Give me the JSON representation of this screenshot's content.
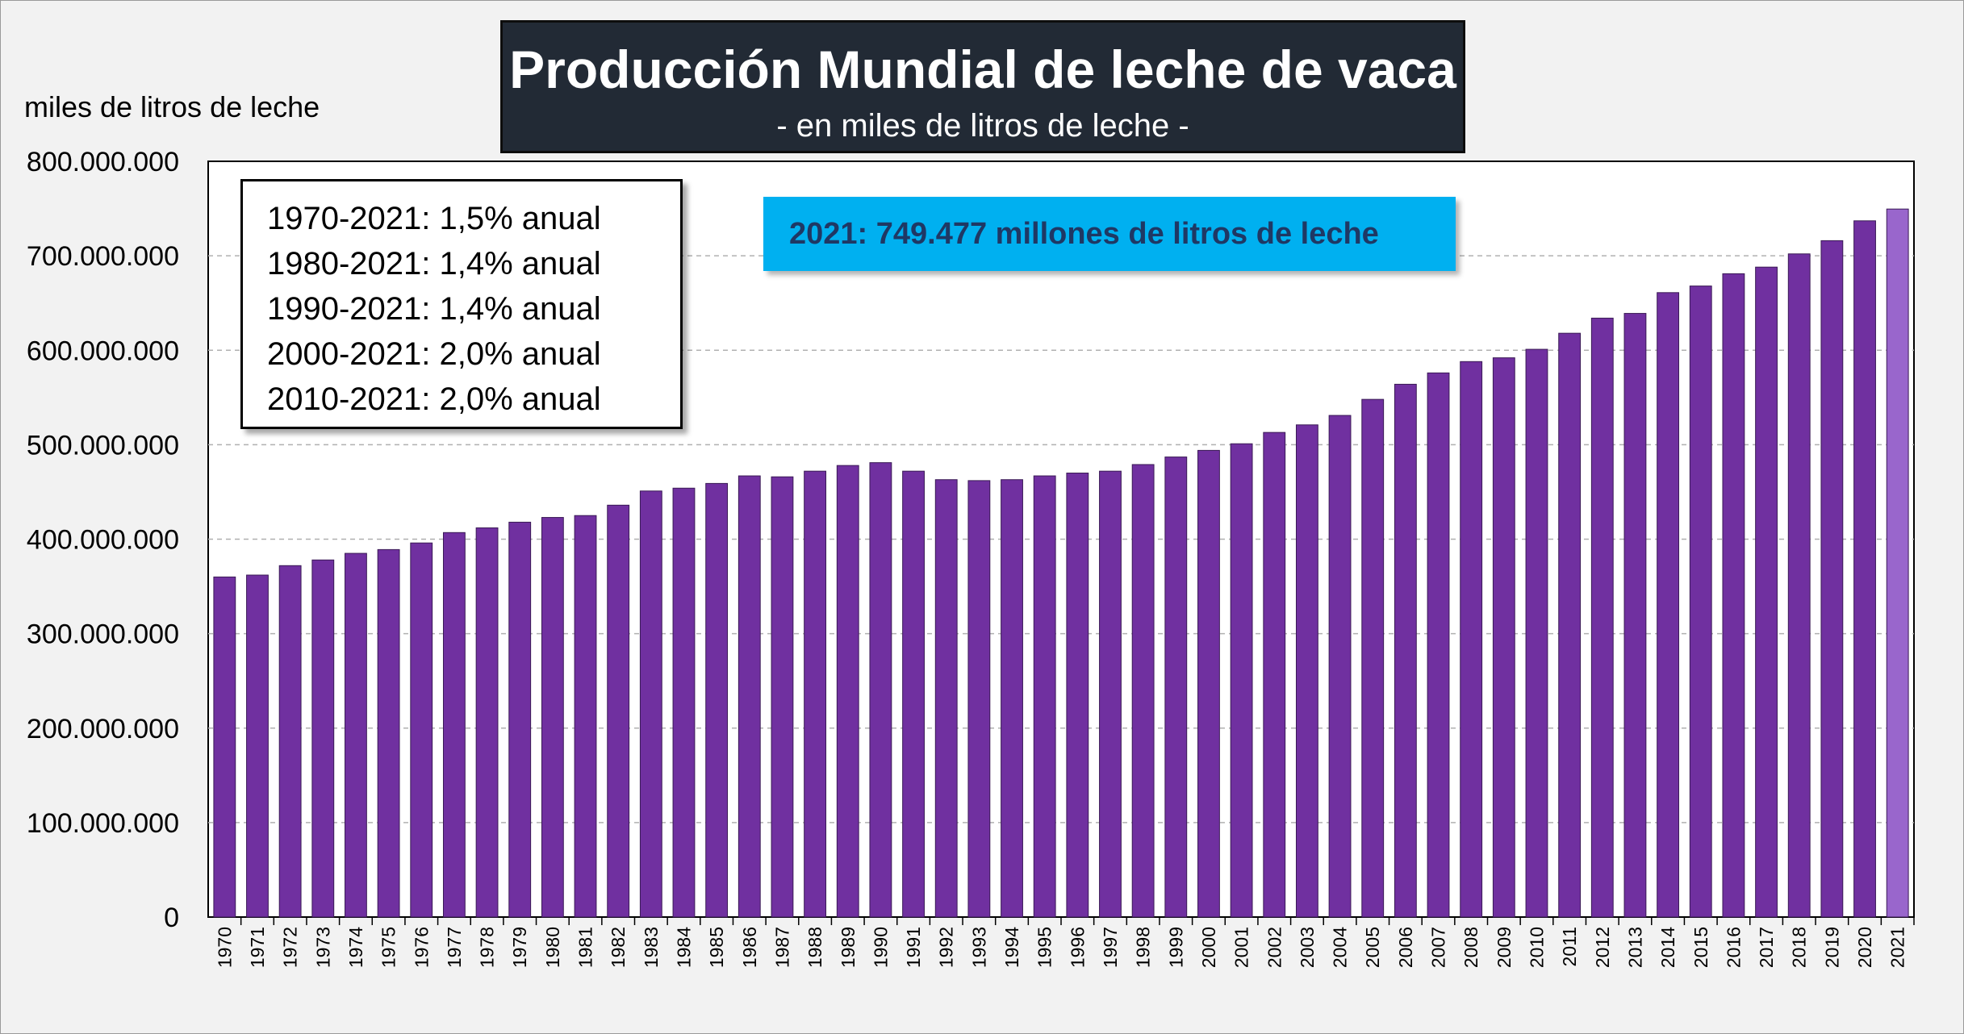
{
  "title": "Producción Mundial de leche de vaca",
  "subtitle": "- en miles de litros de leche -",
  "y_axis_title": "miles de litros de leche",
  "growth_rates": [
    "1970-2021: 1,5% anual",
    "1980-2021: 1,4% anual",
    "1990-2021: 1,4% anual",
    "2000-2021: 2,0% anual",
    "2010-2021: 2,0% anual"
  ],
  "highlight_label": "2021: 749.477 millones de litros de leche",
  "colors": {
    "bar": "#7030a0",
    "bar_last": "#9966cc",
    "title_bg": "#222a35",
    "highlight_bg": "#00b0f0",
    "highlight_text": "#1f3864"
  },
  "chart_data": {
    "type": "bar",
    "ylim": [
      0,
      800000000
    ],
    "grid": true,
    "yticks": [
      "0",
      "100.000.000",
      "200.000.000",
      "300.000.000",
      "400.000.000",
      "500.000.000",
      "600.000.000",
      "700.000.000",
      "800.000.000"
    ],
    "categories": [
      "1970",
      "1971",
      "1972",
      "1973",
      "1974",
      "1975",
      "1976",
      "1977",
      "1978",
      "1979",
      "1980",
      "1981",
      "1982",
      "1983",
      "1984",
      "1985",
      "1986",
      "1987",
      "1988",
      "1989",
      "1990",
      "1991",
      "1992",
      "1993",
      "1994",
      "1995",
      "1996",
      "1997",
      "1998",
      "1999",
      "2000",
      "2001",
      "2002",
      "2003",
      "2004",
      "2005",
      "2006",
      "2007",
      "2008",
      "2009",
      "2010",
      "2011",
      "2012",
      "2013",
      "2014",
      "2015",
      "2016",
      "2017",
      "2018",
      "2019",
      "2020",
      "2021"
    ],
    "values": [
      360000000,
      362000000,
      372000000,
      378000000,
      385000000,
      389000000,
      396000000,
      407000000,
      412000000,
      418000000,
      423000000,
      425000000,
      436000000,
      451000000,
      454000000,
      459000000,
      467000000,
      466000000,
      472000000,
      478000000,
      481000000,
      472000000,
      463000000,
      462000000,
      463000000,
      467000000,
      470000000,
      472000000,
      479000000,
      487000000,
      494000000,
      501000000,
      513000000,
      521000000,
      531000000,
      548000000,
      564000000,
      576000000,
      588000000,
      592000000,
      601000000,
      618000000,
      634000000,
      639000000,
      661000000,
      668000000,
      681000000,
      688000000,
      702000000,
      716000000,
      737000000,
      749477000
    ]
  }
}
